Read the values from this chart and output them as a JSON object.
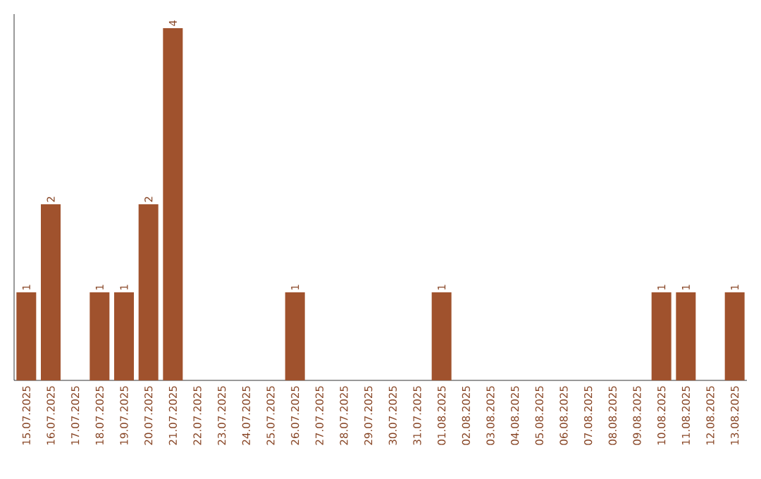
{
  "chart_data": {
    "type": "bar",
    "color": "#a0522d",
    "categories": [
      "15.07.2025",
      "16.07.2025",
      "17.07.2025",
      "18.07.2025",
      "19.07.2025",
      "20.07.2025",
      "21.07.2025",
      "22.07.2025",
      "23.07.2025",
      "24.07.2025",
      "25.07.2025",
      "26.07.2025",
      "27.07.2025",
      "28.07.2025",
      "29.07.2025",
      "30.07.2025",
      "31.07.2025",
      "01.08.2025",
      "02.08.2025",
      "03.08.2025",
      "04.08.2025",
      "05.08.2025",
      "06.08.2025",
      "07.08.2025",
      "08.08.2025",
      "09.08.2025",
      "10.08.2025",
      "11.08.2025",
      "12.08.2025",
      "13.08.2025"
    ],
    "values": [
      1,
      2,
      0,
      1,
      1,
      2,
      4,
      0,
      0,
      0,
      0,
      1,
      0,
      0,
      0,
      0,
      0,
      1,
      0,
      0,
      0,
      0,
      0,
      0,
      0,
      0,
      1,
      1,
      0,
      1
    ],
    "value_labels": [
      "1",
      "2",
      null,
      "1",
      "1",
      "2",
      "4",
      null,
      null,
      null,
      null,
      "1",
      null,
      null,
      null,
      null,
      null,
      "1",
      null,
      null,
      null,
      null,
      null,
      null,
      null,
      null,
      "1",
      "1",
      null,
      "1"
    ],
    "ylim": [
      0,
      4.16
    ],
    "tick_labels": "x"
  }
}
